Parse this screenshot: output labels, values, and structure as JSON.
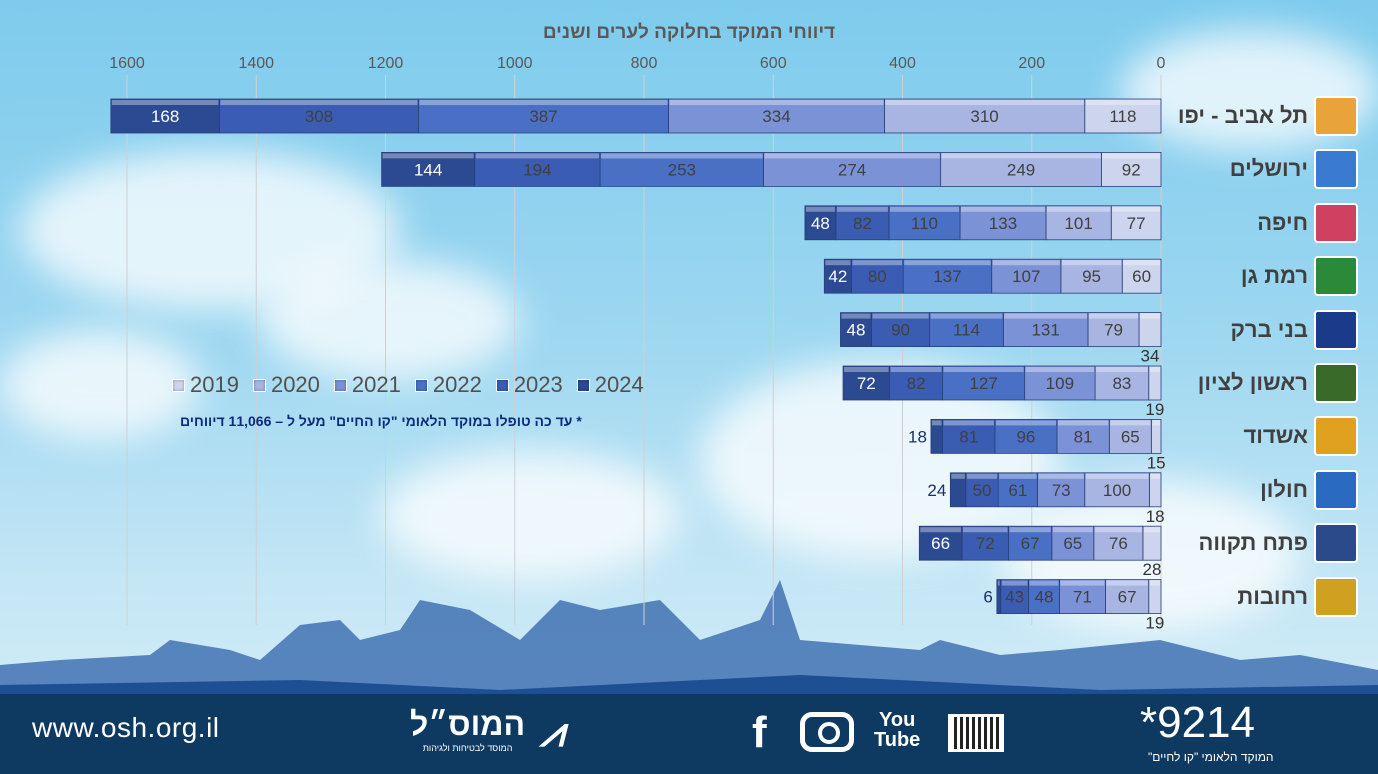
{
  "chart_data": {
    "type": "bar",
    "orientation": "horizontal-stacked-rtl",
    "title": "דיווחי המוקד בחלוקה לערים ושנים",
    "xlim": [
      0,
      1600
    ],
    "xticks": [
      0,
      200,
      400,
      600,
      800,
      1000,
      1200,
      1400,
      1600
    ],
    "grid": true,
    "legend_placement": "middle-left",
    "categories": [
      "תל אביב - יפו",
      "ירושלים",
      "חיפה",
      "רמת גן",
      "בני ברק",
      "ראשון לציון",
      "אשדוד",
      "חולון",
      "פתח תקווה",
      "רחובות"
    ],
    "series": [
      {
        "name": "2019",
        "color": "#cdd4ee",
        "values": [
          118,
          92,
          77,
          60,
          34,
          19,
          15,
          18,
          28,
          19
        ]
      },
      {
        "name": "2020",
        "color": "#a8b5e3",
        "values": [
          310,
          249,
          101,
          95,
          79,
          83,
          65,
          100,
          76,
          67
        ]
      },
      {
        "name": "2021",
        "color": "#7b92d6",
        "values": [
          334,
          274,
          133,
          107,
          131,
          109,
          81,
          73,
          65,
          71
        ]
      },
      {
        "name": "2022",
        "color": "#4a70c6",
        "values": [
          387,
          253,
          110,
          137,
          114,
          127,
          96,
          61,
          67,
          48
        ]
      },
      {
        "name": "2023",
        "color": "#3a5db3",
        "values": [
          308,
          194,
          82,
          80,
          90,
          82,
          81,
          50,
          72,
          43
        ]
      },
      {
        "name": "2024",
        "color": "#2b4a92",
        "values": [
          168,
          144,
          48,
          42,
          48,
          72,
          18,
          24,
          66,
          6
        ]
      }
    ]
  },
  "note": "* עד כה טופלו במוקד הלאומי \"קו החיים\"  מעל ל – 11,066 דיווחים",
  "footer": {
    "url": "www.osh.org.il",
    "brand": "המוס״ל",
    "brand_sub": "המוסד לבטיחות ולגיהות",
    "facebook": "f",
    "youtube_top": "You",
    "youtube_bottom": "Tube",
    "hotline": "*9214",
    "hotline_sub": "המוקד הלאומי \"קו לחיים\""
  }
}
